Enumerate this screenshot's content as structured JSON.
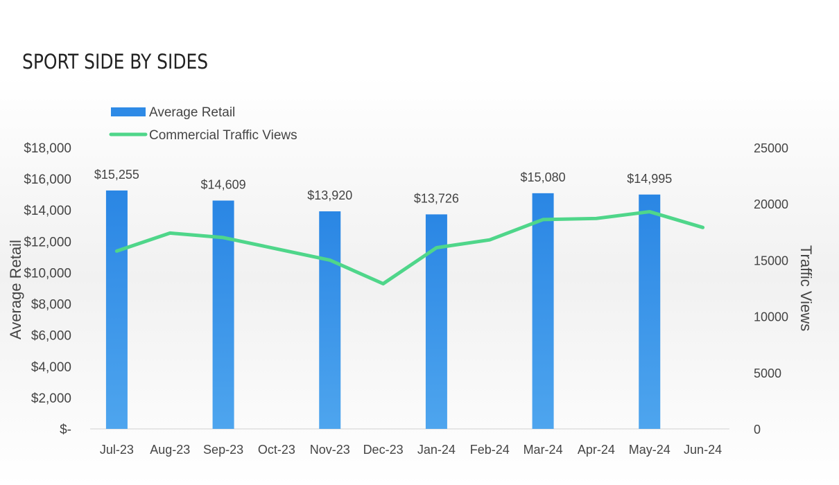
{
  "page": {
    "title": "SPORT SIDE BY SIDES"
  },
  "chart_data": {
    "type": "bar+line",
    "categories": [
      "Jul-23",
      "Aug-23",
      "Sep-23",
      "Oct-23",
      "Nov-23",
      "Dec-23",
      "Jan-24",
      "Feb-24",
      "Mar-24",
      "Apr-24",
      "May-24",
      "Jun-24"
    ],
    "series": [
      {
        "name": "Average Retail",
        "type": "bar",
        "axis": "left",
        "color": "#2e8ae6",
        "values": [
          15255,
          null,
          14609,
          null,
          13920,
          null,
          13726,
          null,
          15080,
          null,
          14995,
          null
        ],
        "data_labels": [
          "$15,255",
          null,
          "$14,609",
          null,
          "$13,920",
          null,
          "$13,726",
          null,
          "$15,080",
          null,
          "$14,995",
          null
        ]
      },
      {
        "name": "Commercial Traffic Views",
        "type": "line",
        "axis": "right",
        "color": "#4fd68a",
        "values": [
          15800,
          17400,
          17000,
          16000,
          15000,
          12900,
          16100,
          16800,
          18600,
          18700,
          19300,
          17900
        ]
      }
    ],
    "ylabel": "Average Retail",
    "y2label": "Traffic Views",
    "ylim": [
      0,
      18000
    ],
    "y2lim": [
      0,
      25000
    ],
    "yticks": [
      0,
      2000,
      4000,
      6000,
      8000,
      10000,
      12000,
      14000,
      16000,
      18000
    ],
    "ytick_labels": [
      "$-",
      "$2,000",
      "$4,000",
      "$6,000",
      "$8,000",
      "$10,000",
      "$12,000",
      "$14,000",
      "$16,000",
      "$18,000"
    ],
    "y2ticks": [
      0,
      5000,
      10000,
      15000,
      20000,
      25000
    ],
    "y2tick_labels": [
      "0",
      "5000",
      "10000",
      "15000",
      "20000",
      "25000"
    ],
    "legend_position": "top-left",
    "grid": false
  }
}
